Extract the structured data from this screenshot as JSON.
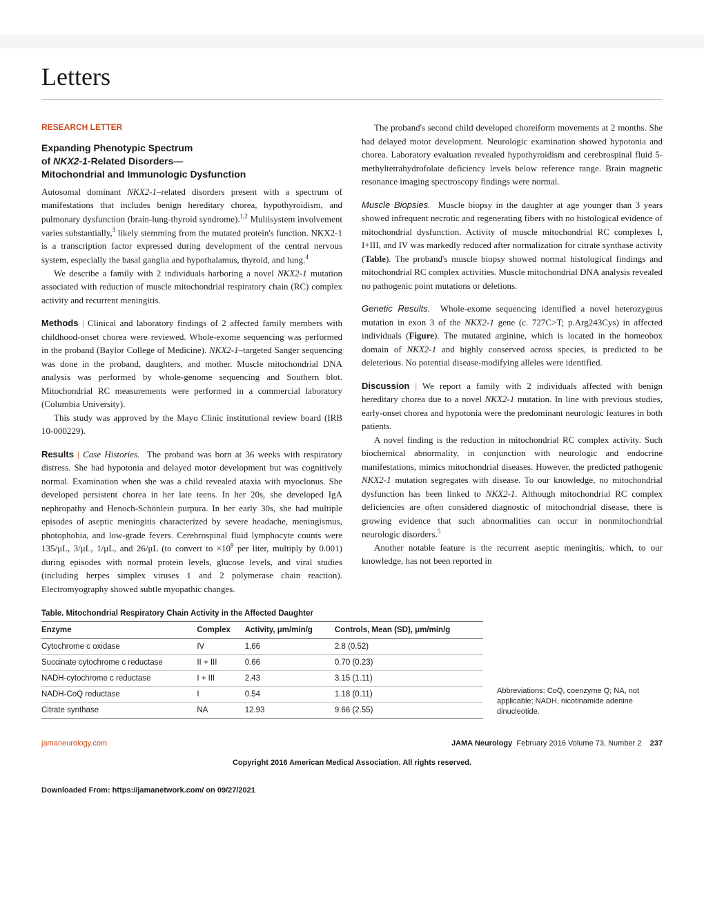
{
  "section_title": "Letters",
  "research_letter_label": "RESEARCH LETTER",
  "title_lines": [
    "Expanding Phenotypic Spectrum",
    "of NKX2-1-Related Disorders—",
    "Mitochondrial and Immunologic Dysfunction"
  ],
  "col1": {
    "intro": "Autosomal dominant NKX2-1–related disorders present with a spectrum of manifestations that includes benign hereditary chorea, hypothyroidism, and pulmonary dysfunction (brain-lung-thyroid syndrome).1,2 Multisystem involvement varies substantially,3 likely stemming from the mutated protein's function. NKX2-1 is a transcription factor expressed during development of the central nervous system, especially the basal ganglia and hypothalamus, thyroid, and lung.4",
    "intro2": "We describe a family with 2 individuals harboring a novel NKX2-1 mutation associated with reduction of muscle mitochondrial respiratory chain (RC) complex activity and recurrent meningitis.",
    "methods_label": "Methods",
    "methods": "Clinical and laboratory findings of 2 affected family members with childhood-onset chorea were reviewed. Whole-exome sequencing was performed in the proband (Baylor College of Medicine). NKX2-1–targeted Sanger sequencing was done in the proband, daughters, and mother. Muscle mitochondrial DNA analysis was performed by whole-genome sequencing and Southern blot. Mitochondrial RC measurements were performed in a commercial laboratory (Columbia University).",
    "methods2": "This study was approved by the Mayo Clinic institutional review board (IRB 10-000229).",
    "results_label": "Results",
    "case_label": "Case Histories.",
    "results": "The proband was born at 36 weeks with respiratory distress. She had hypotonia and delayed motor development but was cognitively normal. Examination when she was a child revealed ataxia with myoclonus. She developed persistent chorea in her late teens. In her 20s, she developed IgA nephropathy and Henoch-Schönlein purpura. In her early 30s, she had multiple episodes of aseptic meningitis characterized by severe headache, meningismus, photophobia, and low-grade fevers. Cerebrospinal fluid lymphocyte counts were 135/μL, 3/μL, 1/μL, and 26/μL (to convert to ×109 per liter, multiply by 0.001) during episodes with normal protein levels, glucose levels, and viral studies (including herpes simplex viruses 1 and 2 polymerase chain reaction). Electromyography showed subtle myopathic changes."
  },
  "col2": {
    "p1": "The proband's second child developed choreiform movements at 2 months. She had delayed motor development. Neurologic examination showed hypotonia and chorea. Laboratory evaluation revealed hypothyroidism and cerebrospinal fluid 5-methyltetrahydrofolate deficiency levels below reference range. Brain magnetic resonance imaging spectroscopy findings were normal.",
    "muscle_label": "Muscle Biopsies.",
    "muscle": "Muscle biopsy in the daughter at age younger than 3 years showed infrequent necrotic and regenerating fibers with no histological evidence of mitochondrial dysfunction. Activity of muscle mitochondrial RC complexes I, I+III, and IV was markedly reduced after normalization for citrate synthase activity (Table). The proband's muscle biopsy showed normal histological findings and mitochondrial RC complex activities. Muscle mitochondrial DNA analysis revealed no pathogenic point mutations or deletions.",
    "genetic_label": "Genetic Results.",
    "genetic": "Whole-exome sequencing identified a novel heterozygous mutation in exon 3 of the NKX2-1 gene (c. 727C>T; p.Arg243Cys) in affected individuals (Figure). The mutated arginine, which is located in the homeobox domain of NKX2-1 and highly conserved across species, is predicted to be deleterious. No potential disease-modifying alleles were identified.",
    "discussion_label": "Discussion",
    "discussion": "We report a family with 2 individuals affected with benign hereditary chorea due to a novel NKX2-1 mutation. In line with previous studies, early-onset chorea and hypotonia were the predominant neurologic features in both patients.",
    "d2": "A novel finding is the reduction in mitochondrial RC complex activity. Such biochemical abnormality, in conjunction with neurologic and endocrine manifestations, mimics mitochondrial diseases. However, the predicted pathogenic NKX2-1 mutation segregates with disease. To our knowledge, no mitochondrial dysfunction has been linked to NKX2-1. Although mitochondrial RC complex deficiencies are often considered diagnostic of mitochondrial disease, there is growing evidence that such abnormalities can occur in nonmitochondrial neurologic disorders.5",
    "d3": "Another notable feature is the recurrent aseptic meningitis, which, to our knowledge, has not been reported in"
  },
  "table": {
    "title": "Table. Mitochondrial Respiratory Chain Activity in the Affected Daughter",
    "headers": [
      "Enzyme",
      "Complex",
      "Activity, μm/min/g",
      "Controls, Mean (SD), μm/min/g"
    ],
    "rows": [
      [
        "Cytochrome c oxidase",
        "IV",
        "1.66",
        "2.8 (0.52)"
      ],
      [
        "Succinate cytochrome c reductase",
        "II + III",
        "0.66",
        "0.70 (0.23)"
      ],
      [
        "NADH-cytochrome c reductase",
        "I + III",
        "2.43",
        "3.15 (1.11)"
      ],
      [
        "NADH-CoQ reductase",
        "I",
        "0.54",
        "1.18 (0.11)"
      ],
      [
        "Citrate synthase",
        "NA",
        "12.93",
        "9.66 (2.55)"
      ]
    ],
    "abbrev": "Abbreviations: CoQ, coenzyme Q; NA, not applicable; NADH, nicotinamide adenine dinucleotide."
  },
  "footer": {
    "left": "jamaneurology.com",
    "right_journal": "JAMA Neurology",
    "right_rest": "February 2016   Volume 73, Number 2",
    "page": "237"
  },
  "copyright": "Copyright 2016 American Medical Association. All rights reserved.",
  "download": "Downloaded From: https://jamanetwork.com/ on 09/27/2021"
}
